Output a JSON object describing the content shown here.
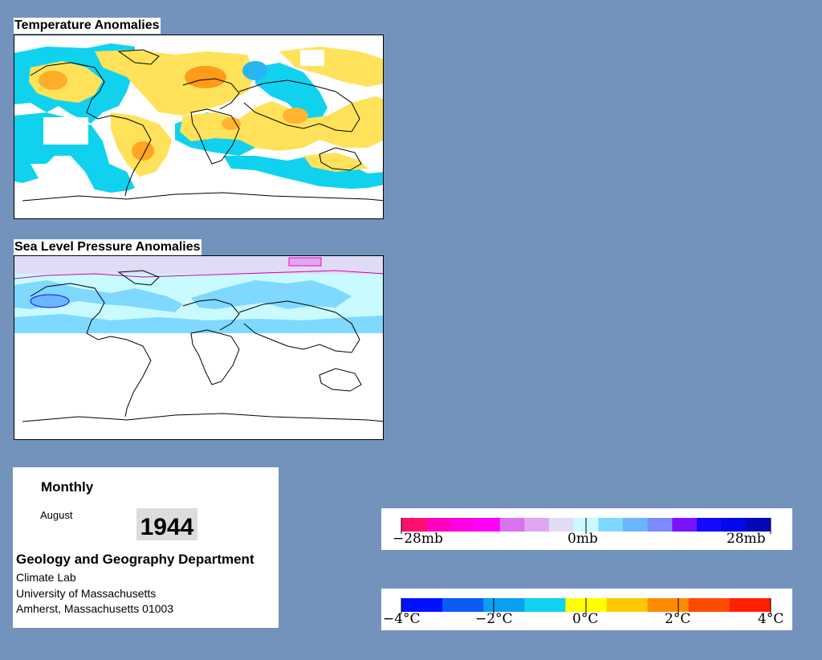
{
  "temperature_map": {
    "title": "Temperature Anomalies"
  },
  "pressure_map": {
    "title": "Sea Level Pressure Anomalies"
  },
  "info": {
    "period": "Monthly",
    "month": "August",
    "year": "1944",
    "department": "Geology and Geography Department",
    "lab": "Climate Lab",
    "university": "University of Massachusetts",
    "address": "Amherst, Massachusetts 01003"
  },
  "pressure_legend": {
    "colors": [
      "#ff0f6e",
      "#ff00c0",
      "#ff00e6",
      "#ff00ff",
      "#d773ee",
      "#dfa6f2",
      "#e0dcf6",
      "#c8faff",
      "#7fd8ff",
      "#6ab6ff",
      "#7b8cff",
      "#7a12ff",
      "#1509ff",
      "#0009e6",
      "#0409b8"
    ],
    "labels": [
      "−28mb",
      "0mb",
      "28mb"
    ]
  },
  "temperature_legend": {
    "colors": [
      "#0011ff",
      "#0b5cf7",
      "#0aa0f0",
      "#10d2ef",
      "#ffff00",
      "#ffc800",
      "#ff8c00",
      "#ff4a00",
      "#ff2000"
    ],
    "labels": [
      "−4°C",
      "−2°C",
      "0°C",
      "2°C",
      "4°C"
    ]
  }
}
